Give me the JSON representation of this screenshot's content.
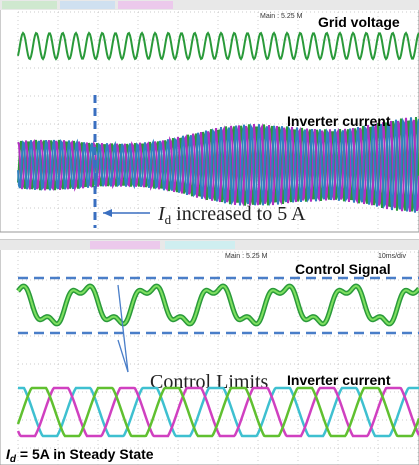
{
  "top_panel": {
    "timebase": "Main : 5.25 M",
    "labels": [
      "Grid voltage",
      "Inverter current"
    ],
    "annotation": {
      "symbol": "I",
      "subscript": "d",
      "text": " increased to 5 A"
    }
  },
  "bottom_panel": {
    "timebase": "Main : 5.25 M",
    "scale": "10ms/div",
    "labels": [
      "Control Signal",
      "Inverter current"
    ],
    "annotation": "Control Limits",
    "caption": {
      "symbol": "I",
      "subscript": "d",
      "text": " = 5A in Steady State"
    }
  }
}
